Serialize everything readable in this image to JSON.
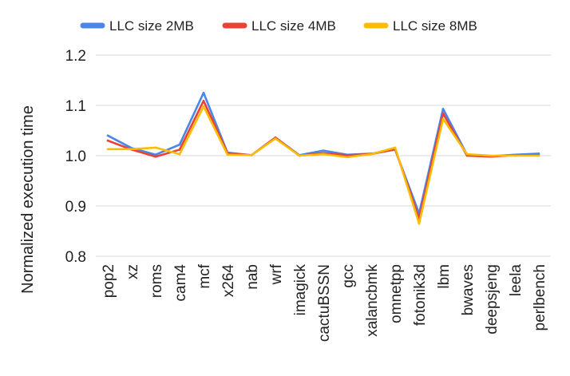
{
  "chart_data": {
    "type": "line",
    "title": "",
    "xlabel": "",
    "ylabel": "Normalized execution time",
    "ylim": [
      0.8,
      1.2
    ],
    "yticks": [
      "0.8",
      "0.9",
      "1.0",
      "1.1",
      "1.2"
    ],
    "grid": true,
    "legend_position": "top",
    "categories": [
      "pop2",
      "xz",
      "roms",
      "cam4",
      "mcf",
      "x264",
      "nab",
      "wrf",
      "imagick",
      "cactuBSSN",
      "gcc",
      "xalancbmk",
      "omnetpp",
      "fotonik3d",
      "lbm",
      "bwaves",
      "deepsjeng",
      "leela",
      "perlbench"
    ],
    "series": [
      {
        "name": "LLC size 2MB",
        "color": "#4a86e8",
        "values": [
          1.04,
          1.015,
          1.002,
          1.022,
          1.125,
          1.006,
          1.001,
          1.036,
          1.001,
          1.01,
          1.002,
          1.004,
          1.012,
          0.885,
          1.093,
          1.002,
          0.999,
          1.002,
          1.004
        ]
      },
      {
        "name": "LLC size 4MB",
        "color": "#ea4335",
        "values": [
          1.03,
          1.012,
          0.998,
          1.012,
          1.109,
          1.005,
          1.001,
          1.036,
          1.0,
          1.005,
          1.001,
          1.003,
          1.013,
          0.875,
          1.084,
          1.0,
          0.998,
          1.001,
          1.001
        ]
      },
      {
        "name": "LLC size 8MB",
        "color": "#fbbc04",
        "values": [
          1.013,
          1.013,
          1.016,
          1.003,
          1.098,
          1.002,
          1.001,
          1.034,
          1.0,
          1.003,
          0.997,
          1.003,
          1.016,
          0.865,
          1.073,
          1.003,
          1.0,
          1.0,
          1.0
        ]
      }
    ]
  }
}
